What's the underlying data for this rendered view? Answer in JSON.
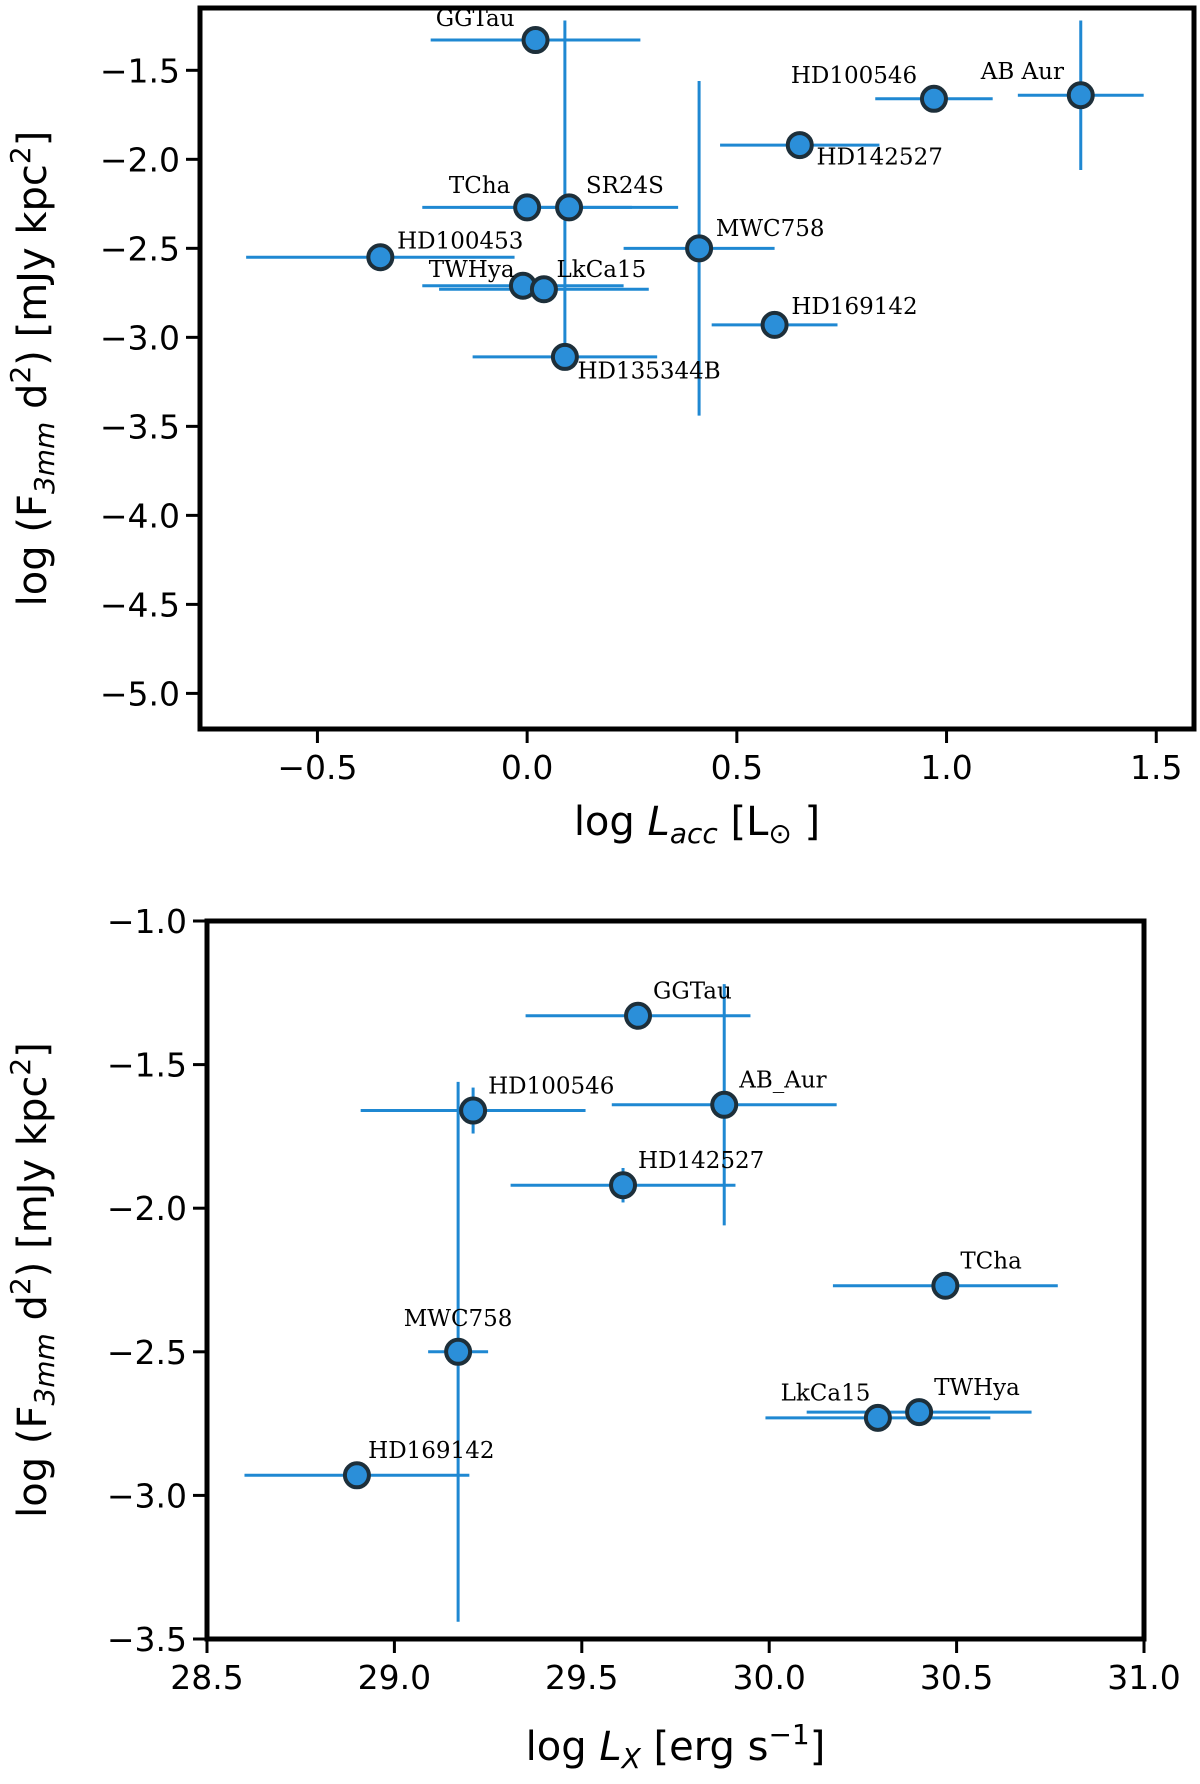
{
  "chart_data": [
    {
      "type": "scatter",
      "xlabel": {
        "prefix": "log ",
        "symbol": "L",
        "sub": "acc",
        "suffix": " [L",
        "unit_sub": "⊙",
        "close": " ]"
      },
      "ylabel": {
        "prefix": "log (F",
        "sub": "3mm",
        "mid": " d",
        "sup1": "2",
        "suffix": ") [mJy kpc",
        "sup2": "2",
        "close": "]"
      },
      "xlim": [
        -0.78,
        1.59
      ],
      "ylim": [
        -5.2,
        -1.15
      ],
      "xticks": [
        -0.5,
        0.0,
        0.5,
        1.0,
        1.5
      ],
      "xtick_labels": [
        "−0.5",
        "0.0",
        "0.5",
        "1.0",
        "1.5"
      ],
      "yticks": [
        -1.5,
        -2.0,
        -2.5,
        -3.0,
        -3.5,
        -4.0,
        -4.5,
        -5.0
      ],
      "ytick_labels": [
        "−1.5",
        "−2.0",
        "−2.5",
        "−3.0",
        "−3.5",
        "−4.0",
        "−4.5",
        "−5.0"
      ],
      "points": [
        {
          "label": "GGTau",
          "x": 0.02,
          "y": -1.33,
          "xerr": [
            0.25,
            0.25
          ],
          "yerr": [
            0,
            0
          ],
          "lx": -0.05,
          "ly": 0.08,
          "anchor": "end"
        },
        {
          "label": "HD100546",
          "x": 0.97,
          "y": -1.66,
          "xerr": [
            0.14,
            0.14
          ],
          "yerr": [
            0,
            0
          ],
          "lx": -0.04,
          "ly": 0.09,
          "anchor": "end"
        },
        {
          "label": "AB Aur",
          "x": 1.32,
          "y": -1.64,
          "xerr": [
            0.15,
            0.15
          ],
          "yerr": [
            0.42,
            0.42
          ],
          "lx": -0.04,
          "ly": 0.09,
          "anchor": "end"
        },
        {
          "label": "HD142527",
          "x": 0.65,
          "y": -1.92,
          "xerr": [
            0.19,
            0.19
          ],
          "yerr": [
            0,
            0
          ],
          "lx": 0.04,
          "ly": -0.11,
          "anchor": "start"
        },
        {
          "label": "TCha",
          "x": 0.0,
          "y": -2.27,
          "xerr": [
            0.25,
            0.25
          ],
          "yerr": [
            0,
            0
          ],
          "lx": -0.04,
          "ly": 0.08,
          "anchor": "end"
        },
        {
          "label": "SR24S",
          "x": 0.1,
          "y": -2.27,
          "xerr": [
            0.26,
            0.26
          ],
          "yerr": [
            0,
            0
          ],
          "lx": 0.04,
          "ly": 0.08,
          "anchor": "start"
        },
        {
          "label": "HD100453",
          "x": -0.35,
          "y": -2.55,
          "xerr": [
            0.32,
            0.32
          ],
          "yerr": [
            0,
            0
          ],
          "lx": 0.04,
          "ly": 0.05,
          "anchor": "start"
        },
        {
          "label": "MWC758",
          "x": 0.41,
          "y": -2.5,
          "xerr": [
            0.18,
            0.18
          ],
          "yerr": [
            0.94,
            0.94
          ],
          "lx": 0.04,
          "ly": 0.07,
          "anchor": "start"
        },
        {
          "label": "TWHya",
          "x": -0.01,
          "y": -2.71,
          "xerr": [
            0.24,
            0.24
          ],
          "yerr": [
            0,
            0
          ],
          "lx": -0.02,
          "ly": 0.05,
          "anchor": "end"
        },
        {
          "label": "LkCa15",
          "x": 0.04,
          "y": -2.73,
          "xerr": [
            0.25,
            0.25
          ],
          "yerr": [
            0,
            0
          ],
          "lx": 0.03,
          "ly": 0.07,
          "anchor": "start"
        },
        {
          "label": "HD169142",
          "x": 0.59,
          "y": -2.93,
          "xerr": [
            0.15,
            0.15
          ],
          "yerr": [
            0,
            0
          ],
          "lx": 0.04,
          "ly": 0.06,
          "anchor": "start"
        },
        {
          "label": "HD135344B",
          "x": 0.09,
          "y": -3.11,
          "xerr": [
            0.22,
            0.22
          ],
          "yerr": [
            0,
            1.89
          ],
          "lx": 0.03,
          "ly": -0.12,
          "anchor": "start"
        }
      ]
    },
    {
      "type": "scatter",
      "xlabel": {
        "prefix": "log ",
        "symbol": "L",
        "sub": "X",
        "suffix": " [erg s",
        "sup": "−1",
        "close": "]"
      },
      "ylabel": {
        "prefix": "log (F",
        "sub": "3mm",
        "mid": " d",
        "sup1": "2",
        "suffix": ") [mJy kpc",
        "sup2": "2",
        "close": "]"
      },
      "xlim": [
        28.5,
        31.0
      ],
      "ylim": [
        -3.5,
        -1.0
      ],
      "xticks": [
        28.5,
        29.0,
        29.5,
        30.0,
        30.5,
        31.0
      ],
      "xtick_labels": [
        "28.5",
        "29.0",
        "29.5",
        "30.0",
        "30.5",
        "31.0"
      ],
      "yticks": [
        -1.0,
        -1.5,
        -2.0,
        -2.5,
        -3.0,
        -3.5
      ],
      "ytick_labels": [
        "−1.0",
        "−1.5",
        "−2.0",
        "−2.5",
        "−3.0",
        "−3.5"
      ],
      "points": [
        {
          "label": "GGTau",
          "x": 29.65,
          "y": -1.33,
          "xerr": [
            0.3,
            0.3
          ],
          "yerr": [
            0,
            0
          ],
          "lx": 0.04,
          "ly": 0.06,
          "anchor": "start"
        },
        {
          "label": "AB_Aur",
          "x": 29.88,
          "y": -1.64,
          "xerr": [
            0.3,
            0.3
          ],
          "yerr": [
            0.42,
            0.42
          ],
          "lx": 0.04,
          "ly": 0.06,
          "anchor": "start"
        },
        {
          "label": "HD100546",
          "x": 29.21,
          "y": -1.66,
          "xerr": [
            0.3,
            0.3
          ],
          "yerr": [
            0.08,
            0.08
          ],
          "lx": 0.04,
          "ly": 0.06,
          "anchor": "start"
        },
        {
          "label": "HD142527",
          "x": 29.61,
          "y": -1.92,
          "xerr": [
            0.3,
            0.3
          ],
          "yerr": [
            0.06,
            0.06
          ],
          "lx": 0.04,
          "ly": 0.06,
          "anchor": "start"
        },
        {
          "label": "TCha",
          "x": 30.47,
          "y": -2.27,
          "xerr": [
            0.3,
            0.3
          ],
          "yerr": [
            0,
            0
          ],
          "lx": 0.04,
          "ly": 0.06,
          "anchor": "start"
        },
        {
          "label": "MWC758",
          "x": 29.17,
          "y": -2.5,
          "xerr": [
            0.08,
            0.08
          ],
          "yerr": [
            0.94,
            0.94
          ],
          "lx": 0.0,
          "ly": 0.09,
          "anchor": "middle"
        },
        {
          "label": "TWHya",
          "x": 30.4,
          "y": -2.71,
          "xerr": [
            0.3,
            0.3
          ],
          "yerr": [
            0,
            0
          ],
          "lx": 0.04,
          "ly": 0.06,
          "anchor": "start"
        },
        {
          "label": "LkCa15",
          "x": 30.29,
          "y": -2.73,
          "xerr": [
            0.3,
            0.3
          ],
          "yerr": [
            0,
            0
          ],
          "lx": -0.02,
          "ly": 0.06,
          "anchor": "end"
        },
        {
          "label": "HD169142",
          "x": 28.9,
          "y": -2.93,
          "xerr": [
            0.3,
            0.3
          ],
          "yerr": [
            0,
            0
          ],
          "lx": 0.03,
          "ly": 0.06,
          "anchor": "start"
        }
      ]
    }
  ]
}
